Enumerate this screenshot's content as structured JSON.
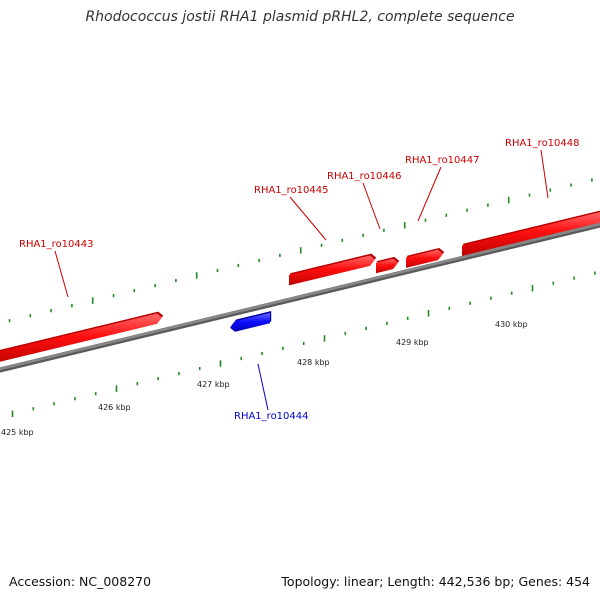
{
  "title": "Rhodococcus jostii RHA1 plasmid pRHL2, complete sequence",
  "footer": {
    "accession": "Accession: NC_008270",
    "summary": "Topology: linear; Length: 442,536 bp; Genes: 454"
  },
  "colors": {
    "forward_gene": "#ff0000",
    "reverse_gene": "#0000ff",
    "backbone": "#888888",
    "tick": "#228b22"
  },
  "scale": {
    "labels": [
      {
        "kbp": 425,
        "text": "425 kbp"
      },
      {
        "kbp": 426,
        "text": "426 kbp"
      },
      {
        "kbp": 427,
        "text": "427 kbp"
      },
      {
        "kbp": 428,
        "text": "428 kbp"
      },
      {
        "kbp": 429,
        "text": "429 kbp"
      },
      {
        "kbp": 430,
        "text": "430 kbp"
      }
    ]
  },
  "genes": [
    {
      "name": "RHA1_ro10443",
      "strand": "+"
    },
    {
      "name": "RHA1_ro10444",
      "strand": "-"
    },
    {
      "name": "RHA1_ro10445",
      "strand": "+"
    },
    {
      "name": "RHA1_ro10446",
      "strand": "+"
    },
    {
      "name": "RHA1_ro10447",
      "strand": "+"
    },
    {
      "name": "RHA1_ro10448",
      "strand": "+"
    }
  ]
}
